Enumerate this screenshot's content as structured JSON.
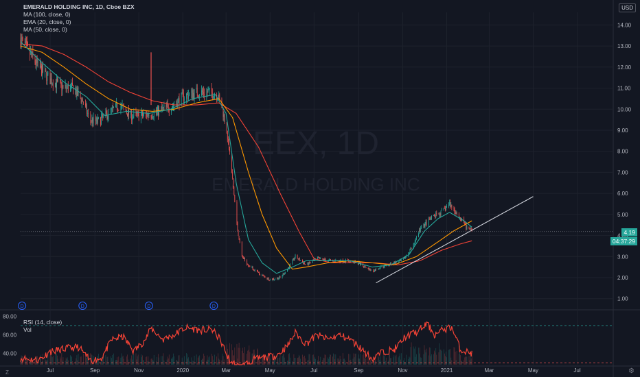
{
  "legend": {
    "title": "EMERALD HOLDING INC, 1D, Cboe BZX",
    "ma100": "MA (100, close, 0)",
    "ema20": "EMA (20, close, 0)",
    "ma50": "MA (50, close, 0)"
  },
  "watermark": {
    "symbol": "EEX, 1D",
    "name": "EMERALD HOLDING INC"
  },
  "currency": "USD",
  "last_price": "4.19",
  "countdown": "04:37:29",
  "rsi_legend": {
    "label": "RSI (14, close)",
    "vol": "Vol"
  },
  "colors": {
    "background": "#131722",
    "candle_up": "#26a69a",
    "candle_down": "#ef5350",
    "ema20": "#26a69a",
    "ma50": "#ff9800",
    "ma100": "#f44336",
    "trendline": "#d1d4dc",
    "rsi": "#f44336",
    "axis_text": "#b2b5be"
  },
  "chart_data": [
    {
      "type": "candlestick",
      "ylim": [
        0.6,
        14.6
      ],
      "yticks": [
        1.0,
        2.0,
        3.0,
        4.0,
        5.0,
        6.0,
        7.0,
        8.0,
        9.0,
        10.0,
        11.0,
        12.0,
        13.0,
        14.0
      ],
      "ytick_labels": [
        "1.00",
        "2.00",
        "3.00",
        "4.00",
        "5.00",
        "6.00",
        "7.00",
        "8.00",
        "9.00",
        "10.00",
        "11.00",
        "12.00",
        "13.00",
        "14.00"
      ],
      "xlim": [
        "2019-05-21",
        "2021-08-20"
      ],
      "xticks": [
        {
          "date": "2019-07-01",
          "label": "Jul"
        },
        {
          "date": "2019-09-01",
          "label": "Sep"
        },
        {
          "date": "2019-11-01",
          "label": "Nov"
        },
        {
          "date": "2020-01-01",
          "label": "2020"
        },
        {
          "date": "2020-03-01",
          "label": "Mar"
        },
        {
          "date": "2020-05-01",
          "label": "May"
        },
        {
          "date": "2020-07-01",
          "label": "Jul"
        },
        {
          "date": "2020-09-01",
          "label": "Sep"
        },
        {
          "date": "2020-11-01",
          "label": "Nov"
        },
        {
          "date": "2021-01-01",
          "label": "2021"
        },
        {
          "date": "2021-03-01",
          "label": "Mar"
        },
        {
          "date": "2021-05-01",
          "label": "May"
        },
        {
          "date": "2021-07-01",
          "label": "Jul"
        }
      ],
      "price_path": [
        [
          "2019-05-21",
          13.3
        ],
        [
          "2019-05-31",
          12.8
        ],
        [
          "2019-06-15",
          12.0
        ],
        [
          "2019-07-01",
          11.4
        ],
        [
          "2019-07-20",
          11.0
        ],
        [
          "2019-08-01",
          11.0
        ],
        [
          "2019-08-15",
          10.4
        ],
        [
          "2019-08-25",
          9.5
        ],
        [
          "2019-09-05",
          9.4
        ],
        [
          "2019-09-20",
          9.8
        ],
        [
          "2019-10-05",
          10.2
        ],
        [
          "2019-10-20",
          9.7
        ],
        [
          "2019-11-05",
          9.7
        ],
        [
          "2019-11-20",
          9.8
        ],
        [
          "2019-12-05",
          10.0
        ],
        [
          "2019-12-20",
          10.2
        ],
        [
          "2020-01-01",
          10.6
        ],
        [
          "2020-01-20",
          10.8
        ],
        [
          "2020-02-05",
          10.8
        ],
        [
          "2020-02-18",
          10.7
        ],
        [
          "2020-02-25",
          10.0
        ],
        [
          "2020-03-02",
          9.0
        ],
        [
          "2020-03-09",
          7.0
        ],
        [
          "2020-03-16",
          4.5
        ],
        [
          "2020-03-23",
          3.0
        ],
        [
          "2020-04-01",
          2.6
        ],
        [
          "2020-04-15",
          2.2
        ],
        [
          "2020-05-01",
          1.9
        ],
        [
          "2020-05-15",
          2.0
        ],
        [
          "2020-05-25",
          2.4
        ],
        [
          "2020-06-05",
          3.0
        ],
        [
          "2020-06-20",
          2.6
        ],
        [
          "2020-07-05",
          2.9
        ],
        [
          "2020-07-25",
          2.8
        ],
        [
          "2020-08-15",
          2.8
        ],
        [
          "2020-09-01",
          2.7
        ],
        [
          "2020-09-20",
          2.3
        ],
        [
          "2020-10-01",
          2.5
        ],
        [
          "2020-10-20",
          2.7
        ],
        [
          "2020-11-01",
          2.8
        ],
        [
          "2020-11-15",
          3.5
        ],
        [
          "2020-11-25",
          4.3
        ],
        [
          "2020-12-10",
          4.8
        ],
        [
          "2020-12-25",
          5.1
        ],
        [
          "2021-01-05",
          5.5
        ],
        [
          "2021-01-12",
          5.2
        ],
        [
          "2021-01-20",
          4.8
        ],
        [
          "2021-01-28",
          4.4
        ],
        [
          "2021-02-05",
          4.19
        ]
      ],
      "spike": {
        "date": "2019-11-18",
        "high": 12.7
      },
      "ema20": [
        [
          "2019-05-21",
          13.2
        ],
        [
          "2019-06-20",
          12.2
        ],
        [
          "2019-07-20",
          11.3
        ],
        [
          "2019-08-20",
          10.6
        ],
        [
          "2019-09-15",
          9.7
        ],
        [
          "2019-10-15",
          9.9
        ],
        [
          "2019-11-15",
          9.8
        ],
        [
          "2019-12-15",
          10.0
        ],
        [
          "2020-01-15",
          10.5
        ],
        [
          "2020-02-15",
          10.7
        ],
        [
          "2020-03-01",
          9.8
        ],
        [
          "2020-03-15",
          6.5
        ],
        [
          "2020-04-01",
          3.8
        ],
        [
          "2020-04-20",
          2.7
        ],
        [
          "2020-05-10",
          2.2
        ],
        [
          "2020-06-01",
          2.5
        ],
        [
          "2020-06-20",
          2.8
        ],
        [
          "2020-07-20",
          2.8
        ],
        [
          "2020-08-20",
          2.8
        ],
        [
          "2020-09-20",
          2.5
        ],
        [
          "2020-10-15",
          2.6
        ],
        [
          "2020-11-10",
          3.1
        ],
        [
          "2020-12-01",
          4.2
        ],
        [
          "2020-12-20",
          4.8
        ],
        [
          "2021-01-05",
          5.1
        ],
        [
          "2021-01-25",
          4.7
        ],
        [
          "2021-02-05",
          4.4
        ]
      ],
      "ma50": [
        [
          "2019-05-21",
          13.0
        ],
        [
          "2019-06-20",
          12.7
        ],
        [
          "2019-07-20",
          12.0
        ],
        [
          "2019-08-20",
          11.2
        ],
        [
          "2019-09-20",
          10.5
        ],
        [
          "2019-10-20",
          10.0
        ],
        [
          "2019-11-20",
          9.9
        ],
        [
          "2019-12-20",
          10.0
        ],
        [
          "2020-01-20",
          10.3
        ],
        [
          "2020-02-20",
          10.5
        ],
        [
          "2020-03-10",
          9.6
        ],
        [
          "2020-04-01",
          7.0
        ],
        [
          "2020-04-20",
          5.0
        ],
        [
          "2020-05-10",
          3.4
        ],
        [
          "2020-06-01",
          2.4
        ],
        [
          "2020-06-20",
          2.5
        ],
        [
          "2020-07-20",
          2.7
        ],
        [
          "2020-08-20",
          2.8
        ],
        [
          "2020-09-20",
          2.7
        ],
        [
          "2020-10-20",
          2.6
        ],
        [
          "2020-11-20",
          3.0
        ],
        [
          "2020-12-20",
          3.7
        ],
        [
          "2021-01-10",
          4.2
        ],
        [
          "2021-02-05",
          4.7
        ]
      ],
      "ma100": [
        [
          "2019-05-21",
          13.1
        ],
        [
          "2019-06-20",
          13.0
        ],
        [
          "2019-07-20",
          12.6
        ],
        [
          "2019-08-20",
          12.0
        ],
        [
          "2019-09-20",
          11.3
        ],
        [
          "2019-10-20",
          10.8
        ],
        [
          "2019-11-20",
          10.4
        ],
        [
          "2019-12-20",
          10.2
        ],
        [
          "2020-01-20",
          10.2
        ],
        [
          "2020-02-20",
          10.3
        ],
        [
          "2020-03-15",
          9.8
        ],
        [
          "2020-04-15",
          8.2
        ],
        [
          "2020-05-15",
          6.0
        ],
        [
          "2020-06-10",
          4.2
        ],
        [
          "2020-07-01",
          2.9
        ],
        [
          "2020-07-25",
          2.7
        ],
        [
          "2020-08-25",
          2.7
        ],
        [
          "2020-09-25",
          2.7
        ],
        [
          "2020-10-25",
          2.6
        ],
        [
          "2020-11-25",
          2.8
        ],
        [
          "2020-12-25",
          3.3
        ],
        [
          "2021-01-20",
          3.6
        ],
        [
          "2021-02-05",
          3.75
        ]
      ],
      "trendline": {
        "start": [
          "2020-09-25",
          1.75
        ],
        "end": [
          "2021-05-01",
          5.85
        ]
      },
      "last_price_line": 4.19,
      "dividends": [
        {
          "date": "2019-05-23",
          "label": "D"
        },
        {
          "date": "2019-08-15",
          "label": "D"
        },
        {
          "date": "2019-11-15",
          "label": "D"
        },
        {
          "date": "2020-02-13",
          "label": "D"
        }
      ]
    },
    {
      "type": "line",
      "name": "RSI (14, close)",
      "ylim": [
        28,
        84
      ],
      "yticks": [
        40.0,
        60.0,
        80.0
      ],
      "ytick_labels": [
        "40.00",
        "60.00",
        "80.00"
      ],
      "bands": [
        70,
        30
      ],
      "path": [
        [
          "2019-05-21",
          35
        ],
        [
          "2019-06-15",
          33
        ],
        [
          "2019-07-01",
          42
        ],
        [
          "2019-07-20",
          45
        ],
        [
          "2019-08-10",
          47
        ],
        [
          "2019-08-25",
          32
        ],
        [
          "2019-09-10",
          35
        ],
        [
          "2019-09-25",
          55
        ],
        [
          "2019-10-10",
          58
        ],
        [
          "2019-10-25",
          42
        ],
        [
          "2019-11-10",
          55
        ],
        [
          "2019-11-18",
          67
        ],
        [
          "2019-12-05",
          55
        ],
        [
          "2019-12-20",
          60
        ],
        [
          "2020-01-05",
          68
        ],
        [
          "2020-01-25",
          65
        ],
        [
          "2020-02-10",
          66
        ],
        [
          "2020-02-22",
          55
        ],
        [
          "2020-03-05",
          33
        ],
        [
          "2020-03-20",
          25
        ],
        [
          "2020-04-10",
          34
        ],
        [
          "2020-04-25",
          36
        ],
        [
          "2020-05-10",
          38
        ],
        [
          "2020-05-25",
          48
        ],
        [
          "2020-06-05",
          62
        ],
        [
          "2020-06-20",
          50
        ],
        [
          "2020-07-05",
          60
        ],
        [
          "2020-07-20",
          55
        ],
        [
          "2020-08-05",
          60
        ],
        [
          "2020-08-20",
          55
        ],
        [
          "2020-09-05",
          45
        ],
        [
          "2020-09-20",
          34
        ],
        [
          "2020-10-05",
          42
        ],
        [
          "2020-10-20",
          44
        ],
        [
          "2020-11-05",
          58
        ],
        [
          "2020-11-20",
          63
        ],
        [
          "2020-12-05",
          72
        ],
        [
          "2020-12-15",
          60
        ],
        [
          "2020-12-28",
          66
        ],
        [
          "2021-01-08",
          68
        ],
        [
          "2021-01-20",
          44
        ],
        [
          "2021-02-05",
          40
        ]
      ]
    }
  ]
}
